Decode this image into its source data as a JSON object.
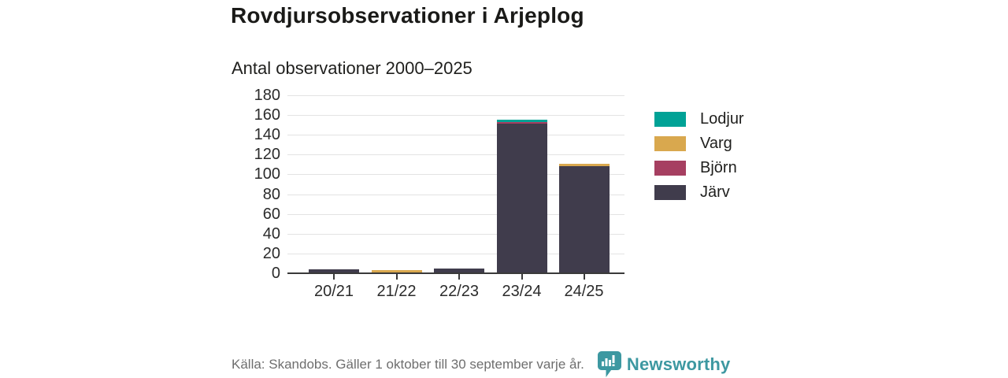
{
  "header": {
    "title": "Rovdjursobservationer i Arjeplog",
    "subtitle": "Antal observationer 2000–2025"
  },
  "chart_data": {
    "type": "bar",
    "stacked": true,
    "title": "Rovdjursobservationer i Arjeplog",
    "subtitle": "Antal observationer 2000–2025",
    "categories": [
      "20/21",
      "21/22",
      "22/23",
      "23/24",
      "24/25"
    ],
    "series": [
      {
        "name": "Lodjur",
        "color": "#00a296",
        "values": [
          0,
          0,
          0,
          2,
          0
        ]
      },
      {
        "name": "Varg",
        "color": "#d9a84e",
        "values": [
          0,
          2,
          0,
          0,
          3
        ]
      },
      {
        "name": "Björn",
        "color": "#a63f61",
        "values": [
          0,
          0,
          0,
          2,
          0
        ]
      },
      {
        "name": "Järv",
        "color": "#403c4c",
        "values": [
          4,
          1,
          5,
          151,
          108
        ]
      }
    ],
    "stack_order_bottom_to_top": [
      "Järv",
      "Björn",
      "Varg",
      "Lodjur"
    ],
    "xlabel": "",
    "ylabel": "",
    "ylim": [
      0,
      180
    ],
    "ytick_step": 20,
    "yticks": [
      0,
      20,
      40,
      60,
      80,
      100,
      120,
      140,
      160,
      180
    ],
    "grid": "horizontal",
    "legend_position": "right"
  },
  "footer": {
    "source": "Källa: Skandobs. Gäller 1 oktober till 30 september varje år.",
    "brand": "Newsworthy"
  },
  "colors": {
    "grid": "#e3e3e3",
    "axis": "#3a3a3a",
    "text": "#1f1f1d",
    "muted_text": "#6e6e6e",
    "brand_teal": "#3d98a1"
  }
}
